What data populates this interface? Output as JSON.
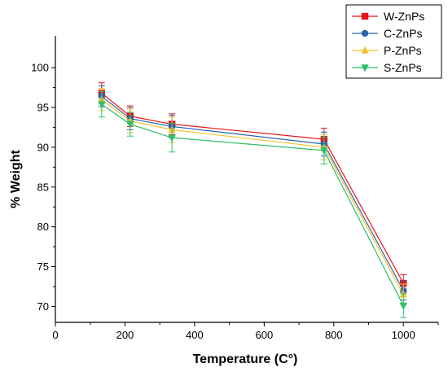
{
  "chart_data": {
    "type": "line",
    "xlabel": "Temperature (C°)",
    "ylabel": "% Weight",
    "xlim": [
      0,
      1100
    ],
    "ylim": [
      68,
      104
    ],
    "xticks": [
      0,
      200,
      400,
      600,
      800,
      1000
    ],
    "yticks": [
      70,
      75,
      80,
      85,
      90,
      95,
      100
    ],
    "grid": false,
    "legend_position": "top-right",
    "series": [
      {
        "name": "W-ZnPs",
        "color": "#e8141c",
        "marker": "square",
        "x": [
          133,
          215,
          335,
          772,
          1000
        ],
        "y": [
          96.8,
          93.9,
          92.9,
          91.0,
          72.9
        ],
        "err": [
          1.3,
          1.3,
          1.3,
          1.4,
          1.1
        ]
      },
      {
        "name": "C-ZnPs",
        "color": "#2a64a8",
        "marker": "circle",
        "x": [
          133,
          215,
          335,
          772,
          1000
        ],
        "y": [
          96.4,
          93.6,
          92.6,
          90.4,
          72.0
        ],
        "err": [
          1.3,
          1.4,
          1.4,
          1.5,
          1.2
        ]
      },
      {
        "name": "P-ZnPs",
        "color": "#f2c12e",
        "marker": "triangle-up",
        "x": [
          133,
          215,
          335,
          772,
          1000
        ],
        "y": [
          96.0,
          93.3,
          92.2,
          90.0,
          71.5
        ],
        "err": [
          1.4,
          1.5,
          1.6,
          1.6,
          1.3
        ]
      },
      {
        "name": "S-ZnPs",
        "color": "#2dbf6a",
        "marker": "triangle-down",
        "x": [
          133,
          215,
          335,
          772,
          1000
        ],
        "y": [
          95.4,
          92.9,
          91.2,
          89.6,
          70.1
        ],
        "err": [
          1.6,
          1.5,
          1.8,
          1.7,
          1.5
        ]
      }
    ]
  }
}
